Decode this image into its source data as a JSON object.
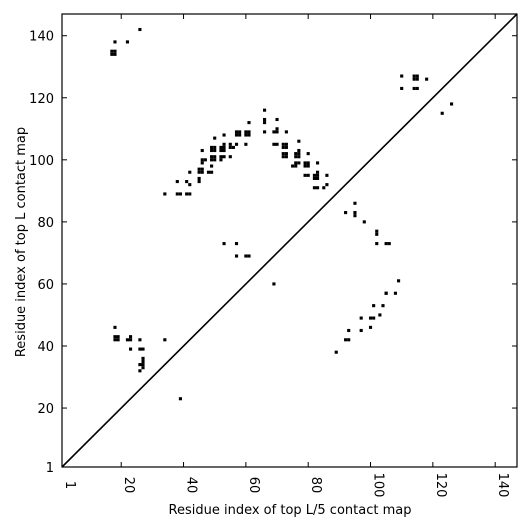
{
  "chart_data": {
    "type": "heatmap",
    "title": "",
    "xlabel": "Residue index of top L/5 contact map",
    "ylabel": "Residue index of top L contact map",
    "xlim": [
      1,
      147
    ],
    "ylim": [
      1,
      147
    ],
    "xticks": [
      1,
      20,
      40,
      60,
      80,
      100,
      120,
      140
    ],
    "yticks": [
      1,
      20,
      40,
      60,
      80,
      100,
      120,
      140
    ],
    "diagonal": true,
    "colors": {
      "contact": "#000000",
      "diagonal": "#000000",
      "frame": "#000000",
      "background": "#ffffff"
    },
    "upper_points": [
      [
        26,
        142
      ],
      [
        18,
        138
      ],
      [
        22,
        138
      ],
      [
        17,
        135
      ],
      [
        18,
        135
      ],
      [
        17,
        134
      ],
      [
        18,
        134
      ],
      [
        34,
        89
      ],
      [
        38,
        89
      ],
      [
        39,
        89
      ],
      [
        41,
        89
      ],
      [
        42,
        89
      ],
      [
        38,
        93
      ],
      [
        41,
        93
      ],
      [
        42,
        92
      ],
      [
        42,
        96
      ],
      [
        45,
        93
      ],
      [
        45,
        94
      ],
      [
        45,
        96
      ],
      [
        46,
        96
      ],
      [
        45,
        97
      ],
      [
        46,
        97
      ],
      [
        48,
        96
      ],
      [
        49,
        96
      ],
      [
        49,
        98
      ],
      [
        46,
        99
      ],
      [
        46,
        100
      ],
      [
        47,
        100
      ],
      [
        49,
        100
      ],
      [
        50,
        100
      ],
      [
        49,
        101
      ],
      [
        50,
        101
      ],
      [
        52,
        100
      ],
      [
        52,
        101
      ],
      [
        53,
        101
      ],
      [
        49,
        103
      ],
      [
        50,
        103
      ],
      [
        49,
        104
      ],
      [
        50,
        104
      ],
      [
        52,
        103
      ],
      [
        53,
        103
      ],
      [
        52,
        104
      ],
      [
        53,
        104
      ],
      [
        53,
        105
      ],
      [
        46,
        103
      ],
      [
        50,
        107
      ],
      [
        53,
        108
      ],
      [
        55,
        101
      ],
      [
        55,
        104
      ],
      [
        56,
        104
      ],
      [
        55,
        105
      ],
      [
        57,
        105
      ],
      [
        57,
        108
      ],
      [
        58,
        108
      ],
      [
        57,
        109
      ],
      [
        58,
        109
      ],
      [
        60,
        105
      ],
      [
        60,
        108
      ],
      [
        61,
        108
      ],
      [
        60,
        109
      ],
      [
        61,
        109
      ],
      [
        61,
        112
      ],
      [
        66,
        109
      ],
      [
        66,
        112
      ],
      [
        66,
        113
      ],
      [
        66,
        116
      ],
      [
        69,
        105
      ],
      [
        70,
        105
      ],
      [
        69,
        109
      ],
      [
        70,
        109
      ],
      [
        70,
        110
      ],
      [
        70,
        113
      ],
      [
        72,
        101
      ],
      [
        73,
        101
      ],
      [
        72,
        102
      ],
      [
        73,
        102
      ],
      [
        72,
        104
      ],
      [
        73,
        104
      ],
      [
        72,
        105
      ],
      [
        73,
        105
      ],
      [
        73,
        109
      ],
      [
        75,
        98
      ],
      [
        76,
        98
      ],
      [
        76,
        99
      ],
      [
        77,
        99
      ],
      [
        76,
        101
      ],
      [
        77,
        101
      ],
      [
        76,
        102
      ],
      [
        77,
        102
      ],
      [
        77,
        103
      ],
      [
        77,
        106
      ],
      [
        79,
        95
      ],
      [
        80,
        95
      ],
      [
        79,
        98
      ],
      [
        80,
        98
      ],
      [
        79,
        99
      ],
      [
        80,
        99
      ],
      [
        80,
        102
      ],
      [
        82,
        91
      ],
      [
        83,
        91
      ],
      [
        82,
        94
      ],
      [
        83,
        94
      ],
      [
        82,
        95
      ],
      [
        83,
        95
      ],
      [
        83,
        96
      ],
      [
        83,
        99
      ],
      [
        85,
        91
      ],
      [
        86,
        92
      ],
      [
        86,
        95
      ],
      [
        53,
        73
      ],
      [
        57,
        73
      ],
      [
        57,
        69
      ],
      [
        60,
        69
      ],
      [
        61,
        69
      ],
      [
        92,
        83
      ],
      [
        95,
        82
      ],
      [
        95,
        83
      ],
      [
        95,
        86
      ],
      [
        98,
        80
      ],
      [
        102,
        73
      ],
      [
        102,
        76
      ],
      [
        102,
        77
      ],
      [
        105,
        73
      ],
      [
        106,
        73
      ],
      [
        109,
        61
      ],
      [
        108,
        57
      ],
      [
        105,
        57
      ],
      [
        110,
        123
      ],
      [
        110,
        127
      ],
      [
        114,
        123
      ],
      [
        115,
        123
      ],
      [
        114,
        126
      ],
      [
        115,
        126
      ],
      [
        114,
        127
      ],
      [
        115,
        127
      ],
      [
        118,
        126
      ],
      [
        123,
        115
      ],
      [
        126,
        118
      ]
    ],
    "lower_points": [
      [
        18,
        46
      ],
      [
        18,
        43
      ],
      [
        19,
        43
      ],
      [
        18,
        42
      ],
      [
        19,
        42
      ],
      [
        22,
        42
      ],
      [
        23,
        42
      ],
      [
        23,
        43
      ],
      [
        23,
        39
      ],
      [
        26,
        42
      ],
      [
        26,
        39
      ],
      [
        27,
        39
      ],
      [
        27,
        36
      ],
      [
        27,
        35
      ],
      [
        26,
        34
      ],
      [
        27,
        34
      ],
      [
        27,
        33
      ],
      [
        26,
        32
      ],
      [
        34,
        42
      ],
      [
        39,
        23
      ],
      [
        69,
        60
      ],
      [
        89,
        38
      ],
      [
        92,
        42
      ],
      [
        93,
        42
      ],
      [
        93,
        45
      ],
      [
        97,
        45
      ],
      [
        97,
        49
      ],
      [
        100,
        46
      ],
      [
        100,
        49
      ],
      [
        101,
        49
      ],
      [
        101,
        53
      ],
      [
        103,
        50
      ],
      [
        104,
        53
      ],
      [
        105,
        57
      ]
    ]
  }
}
